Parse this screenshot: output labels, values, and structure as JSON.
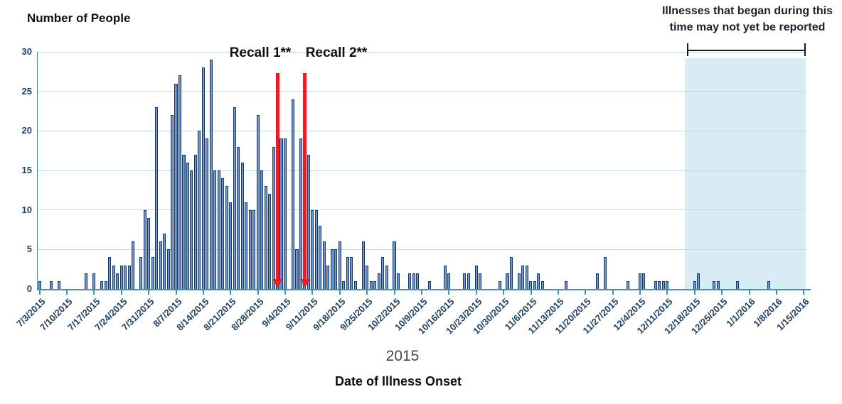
{
  "title": "Number of People",
  "annotation_lines": [
    "Illnesses that began during this",
    "time may not yet be reported"
  ],
  "xaxis_year": "2015",
  "xaxis_title": "Date of Illness Onset",
  "colors": {
    "bar_fill": "#4273c4",
    "bar_border": "#17375e",
    "gridline": "#b6dde8",
    "axis": "#3d96ad",
    "shaded_region": "#d9ebf5",
    "recall_line": "#ec1c24",
    "tick_label": "#1f3f5f"
  },
  "chart_data": {
    "type": "bar",
    "title": "Number of People",
    "xlabel": "Date of Illness Onset",
    "ylabel": "Number of People",
    "x_year_label": "2015",
    "ylim": [
      0,
      30
    ],
    "yticks": [
      0,
      5,
      10,
      15,
      20,
      25,
      30
    ],
    "grid": "horizontal",
    "x_start": "7/3/2015",
    "x_end": "1/15/2016",
    "x_unit": "day",
    "tick_labels": [
      "7/3/2015",
      "7/10/2015",
      "7/17/2015",
      "7/24/2015",
      "7/31/2015",
      "8/7/2015",
      "8/14/2015",
      "8/21/2015",
      "8/28/2015",
      "9/4/2015",
      "9/11/2015",
      "9/18/2015",
      "9/25/2015",
      "10/2/2015",
      "10/9/2015",
      "10/16/2015",
      "10/23/2015",
      "10/30/2015",
      "11/6/2015",
      "11/13/2015",
      "11/20/2015",
      "11/27/2015",
      "12/4/2015",
      "12/11/2015",
      "12/18/2015",
      "12/25/2015",
      "1/1/2016",
      "1/8/2016",
      "1/15/2016"
    ],
    "bars": [
      {
        "date": "7/3/2015",
        "count": 1
      },
      {
        "date": "7/6/2015",
        "count": 1
      },
      {
        "date": "7/8/2015",
        "count": 1
      },
      {
        "date": "7/15/2015",
        "count": 2
      },
      {
        "date": "7/17/2015",
        "count": 2
      },
      {
        "date": "7/19/2015",
        "count": 1
      },
      {
        "date": "7/20/2015",
        "count": 1
      },
      {
        "date": "7/21/2015",
        "count": 4
      },
      {
        "date": "7/22/2015",
        "count": 3
      },
      {
        "date": "7/23/2015",
        "count": 2
      },
      {
        "date": "7/24/2015",
        "count": 3
      },
      {
        "date": "7/25/2015",
        "count": 3
      },
      {
        "date": "7/26/2015",
        "count": 3
      },
      {
        "date": "7/27/2015",
        "count": 6
      },
      {
        "date": "7/29/2015",
        "count": 4
      },
      {
        "date": "7/30/2015",
        "count": 10
      },
      {
        "date": "7/31/2015",
        "count": 9
      },
      {
        "date": "8/1/2015",
        "count": 4
      },
      {
        "date": "8/2/2015",
        "count": 23
      },
      {
        "date": "8/3/2015",
        "count": 6
      },
      {
        "date": "8/4/2015",
        "count": 7
      },
      {
        "date": "8/5/2015",
        "count": 5
      },
      {
        "date": "8/6/2015",
        "count": 22
      },
      {
        "date": "8/7/2015",
        "count": 26
      },
      {
        "date": "8/8/2015",
        "count": 27
      },
      {
        "date": "8/9/2015",
        "count": 17
      },
      {
        "date": "8/10/2015",
        "count": 16
      },
      {
        "date": "8/11/2015",
        "count": 15
      },
      {
        "date": "8/12/2015",
        "count": 17
      },
      {
        "date": "8/13/2015",
        "count": 20
      },
      {
        "date": "8/14/2015",
        "count": 28
      },
      {
        "date": "8/15/2015",
        "count": 19
      },
      {
        "date": "8/16/2015",
        "count": 29
      },
      {
        "date": "8/17/2015",
        "count": 15
      },
      {
        "date": "8/18/2015",
        "count": 15
      },
      {
        "date": "8/19/2015",
        "count": 14
      },
      {
        "date": "8/20/2015",
        "count": 13
      },
      {
        "date": "8/21/2015",
        "count": 11
      },
      {
        "date": "8/22/2015",
        "count": 23
      },
      {
        "date": "8/23/2015",
        "count": 18
      },
      {
        "date": "8/24/2015",
        "count": 16
      },
      {
        "date": "8/25/2015",
        "count": 11
      },
      {
        "date": "8/26/2015",
        "count": 10
      },
      {
        "date": "8/27/2015",
        "count": 10
      },
      {
        "date": "8/28/2015",
        "count": 22
      },
      {
        "date": "8/29/2015",
        "count": 15
      },
      {
        "date": "8/30/2015",
        "count": 13
      },
      {
        "date": "8/31/2015",
        "count": 12
      },
      {
        "date": "9/1/2015",
        "count": 18
      },
      {
        "date": "9/2/2015",
        "count": 18
      },
      {
        "date": "9/3/2015",
        "count": 19
      },
      {
        "date": "9/4/2015",
        "count": 19
      },
      {
        "date": "9/6/2015",
        "count": 24
      },
      {
        "date": "9/7/2015",
        "count": 5
      },
      {
        "date": "9/8/2015",
        "count": 19
      },
      {
        "date": "9/9/2015",
        "count": 19
      },
      {
        "date": "9/10/2015",
        "count": 17
      },
      {
        "date": "9/11/2015",
        "count": 10
      },
      {
        "date": "9/12/2015",
        "count": 10
      },
      {
        "date": "9/13/2015",
        "count": 8
      },
      {
        "date": "9/14/2015",
        "count": 6
      },
      {
        "date": "9/15/2015",
        "count": 3
      },
      {
        "date": "9/16/2015",
        "count": 5
      },
      {
        "date": "9/17/2015",
        "count": 5
      },
      {
        "date": "9/18/2015",
        "count": 6
      },
      {
        "date": "9/19/2015",
        "count": 1
      },
      {
        "date": "9/20/2015",
        "count": 4
      },
      {
        "date": "9/21/2015",
        "count": 4
      },
      {
        "date": "9/22/2015",
        "count": 1
      },
      {
        "date": "9/24/2015",
        "count": 6
      },
      {
        "date": "9/25/2015",
        "count": 3
      },
      {
        "date": "9/26/2015",
        "count": 1
      },
      {
        "date": "9/27/2015",
        "count": 1
      },
      {
        "date": "9/28/2015",
        "count": 2
      },
      {
        "date": "9/29/2015",
        "count": 4
      },
      {
        "date": "9/30/2015",
        "count": 3
      },
      {
        "date": "10/2/2015",
        "count": 6
      },
      {
        "date": "10/3/2015",
        "count": 2
      },
      {
        "date": "10/6/2015",
        "count": 2
      },
      {
        "date": "10/7/2015",
        "count": 2
      },
      {
        "date": "10/8/2015",
        "count": 2
      },
      {
        "date": "10/11/2015",
        "count": 1
      },
      {
        "date": "10/15/2015",
        "count": 3
      },
      {
        "date": "10/16/2015",
        "count": 2
      },
      {
        "date": "10/20/2015",
        "count": 2
      },
      {
        "date": "10/21/2015",
        "count": 2
      },
      {
        "date": "10/23/2015",
        "count": 3
      },
      {
        "date": "10/24/2015",
        "count": 2
      },
      {
        "date": "10/29/2015",
        "count": 1
      },
      {
        "date": "10/31/2015",
        "count": 2
      },
      {
        "date": "11/1/2015",
        "count": 4
      },
      {
        "date": "11/3/2015",
        "count": 2
      },
      {
        "date": "11/4/2015",
        "count": 3
      },
      {
        "date": "11/5/2015",
        "count": 3
      },
      {
        "date": "11/6/2015",
        "count": 1
      },
      {
        "date": "11/7/2015",
        "count": 1
      },
      {
        "date": "11/8/2015",
        "count": 2
      },
      {
        "date": "11/9/2015",
        "count": 1
      },
      {
        "date": "11/15/2015",
        "count": 1
      },
      {
        "date": "11/23/2015",
        "count": 2
      },
      {
        "date": "11/25/2015",
        "count": 4
      },
      {
        "date": "12/1/2015",
        "count": 1
      },
      {
        "date": "12/4/2015",
        "count": 2
      },
      {
        "date": "12/5/2015",
        "count": 2
      },
      {
        "date": "12/8/2015",
        "count": 1
      },
      {
        "date": "12/9/2015",
        "count": 1
      },
      {
        "date": "12/10/2015",
        "count": 1
      },
      {
        "date": "12/11/2015",
        "count": 1
      },
      {
        "date": "12/18/2015",
        "count": 1
      },
      {
        "date": "12/19/2015",
        "count": 2
      },
      {
        "date": "12/23/2015",
        "count": 1
      },
      {
        "date": "12/24/2015",
        "count": 1
      },
      {
        "date": "12/29/2015",
        "count": 1
      },
      {
        "date": "1/6/2016",
        "count": 1
      }
    ],
    "recall_lines": [
      {
        "label": "Recall 1**",
        "date": "9/2/2015"
      },
      {
        "label": "Recall 2**",
        "date": "9/9/2015"
      }
    ],
    "shaded_region": {
      "start": "12/16/2015",
      "end": "1/15/2016",
      "note": "Illnesses that began during this time may not yet be reported"
    },
    "legend": "none"
  }
}
